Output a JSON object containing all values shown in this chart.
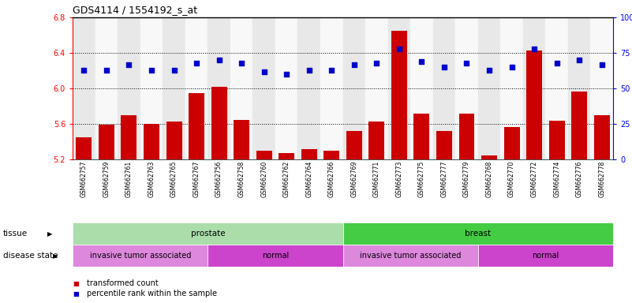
{
  "title": "GDS4114 / 1554192_s_at",
  "samples": [
    "GSM662757",
    "GSM662759",
    "GSM662761",
    "GSM662763",
    "GSM662765",
    "GSM662767",
    "GSM662756",
    "GSM662758",
    "GSM662760",
    "GSM662762",
    "GSM662764",
    "GSM662766",
    "GSM662769",
    "GSM662771",
    "GSM662773",
    "GSM662775",
    "GSM662777",
    "GSM662779",
    "GSM662768",
    "GSM662770",
    "GSM662772",
    "GSM662774",
    "GSM662776",
    "GSM662778"
  ],
  "bar_values": [
    5.45,
    5.59,
    5.7,
    5.6,
    5.63,
    5.95,
    6.02,
    5.65,
    5.3,
    5.27,
    5.32,
    5.3,
    5.52,
    5.63,
    6.65,
    5.72,
    5.52,
    5.72,
    5.25,
    5.57,
    6.43,
    5.64,
    5.97,
    5.7
  ],
  "dot_values": [
    63,
    63,
    67,
    63,
    63,
    68,
    70,
    68,
    62,
    60,
    63,
    63,
    67,
    68,
    78,
    69,
    65,
    68,
    63,
    65,
    78,
    68,
    70,
    67
  ],
  "ylim_left": [
    5.2,
    6.8
  ],
  "ylim_right": [
    0,
    100
  ],
  "yticks_left": [
    5.2,
    5.6,
    6.0,
    6.4,
    6.8
  ],
  "yticks_right": [
    0,
    25,
    50,
    75,
    100
  ],
  "ytick_labels_right": [
    "0",
    "25",
    "50",
    "75",
    "100%"
  ],
  "bar_color": "#cc0000",
  "dot_color": "#0000cc",
  "tissue_groups": [
    {
      "label": "prostate",
      "start": 0,
      "end": 12,
      "color": "#aaddaa"
    },
    {
      "label": "breast",
      "start": 12,
      "end": 24,
      "color": "#44cc44"
    }
  ],
  "disease_groups": [
    {
      "label": "invasive tumor associated",
      "start": 0,
      "end": 6,
      "color": "#dd88dd"
    },
    {
      "label": "normal",
      "start": 6,
      "end": 12,
      "color": "#cc44cc"
    },
    {
      "label": "invasive tumor associated",
      "start": 12,
      "end": 18,
      "color": "#dd88dd"
    },
    {
      "label": "normal",
      "start": 18,
      "end": 24,
      "color": "#cc44cc"
    }
  ],
  "tissue_label": "tissue",
  "disease_label": "disease state",
  "grid_lines": [
    5.6,
    6.0,
    6.4
  ],
  "col_bg_even": "#e8e8e8",
  "col_bg_odd": "#f8f8f8",
  "legend_items": [
    {
      "label": "transformed count",
      "color": "#cc0000"
    },
    {
      "label": "percentile rank within the sample",
      "color": "#0000cc"
    }
  ]
}
